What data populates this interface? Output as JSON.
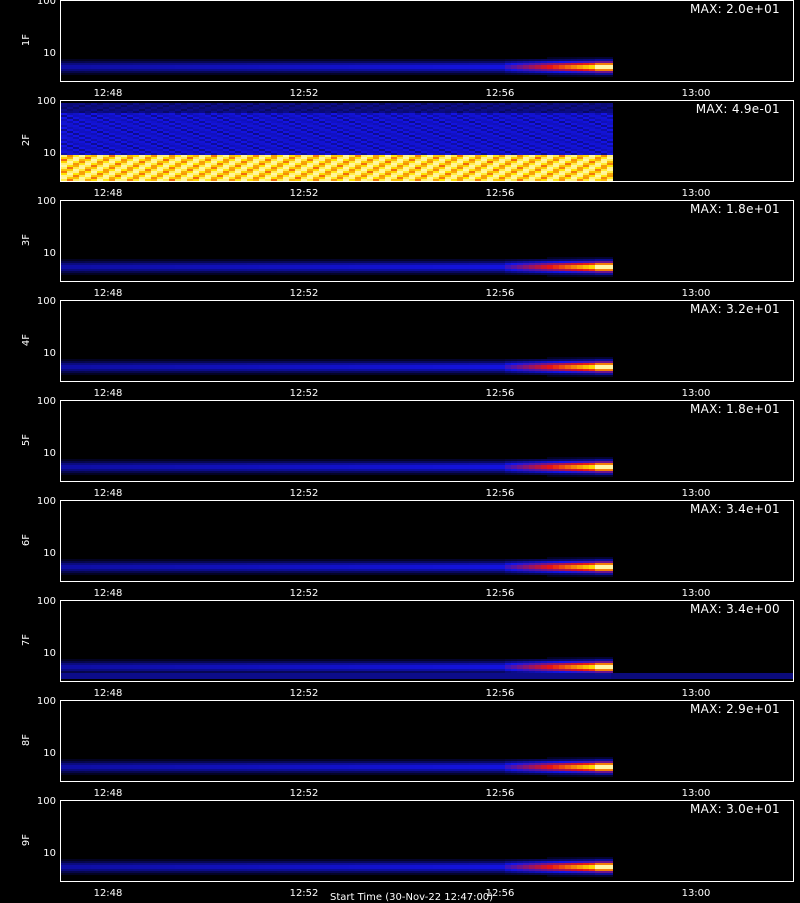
{
  "chart_data": {
    "type": "heatmap",
    "x_ticks": [
      "12:48",
      "12:52",
      "12:56",
      "13:00"
    ],
    "y_ticks": [
      "100",
      "10"
    ],
    "y_scale": "log",
    "colormap": [
      "#000000",
      "#0000ff",
      "#ff0000",
      "#ffff00",
      "#ffffff"
    ],
    "panels": [
      {
        "label": "1F",
        "max": "MAX: 2.0e+01",
        "pattern": "tail"
      },
      {
        "label": "2F",
        "max": "MAX: 4.9e-01",
        "pattern": "saturated"
      },
      {
        "label": "3F",
        "max": "MAX: 1.8e+01",
        "pattern": "tail"
      },
      {
        "label": "4F",
        "max": "MAX: 3.2e+01",
        "pattern": "tail"
      },
      {
        "label": "5F",
        "max": "MAX: 1.8e+01",
        "pattern": "tail"
      },
      {
        "label": "6F",
        "max": "MAX: 3.4e+01",
        "pattern": "tail"
      },
      {
        "label": "7F",
        "max": "MAX: 3.4e+00",
        "pattern": "tail_band"
      },
      {
        "label": "8F",
        "max": "MAX: 2.9e+01",
        "pattern": "tail"
      },
      {
        "label": "9F",
        "max": "MAX: 3.0e+01",
        "pattern": "tail"
      }
    ],
    "footer": "Start Time (30-Nov-22 12:47:00)"
  }
}
